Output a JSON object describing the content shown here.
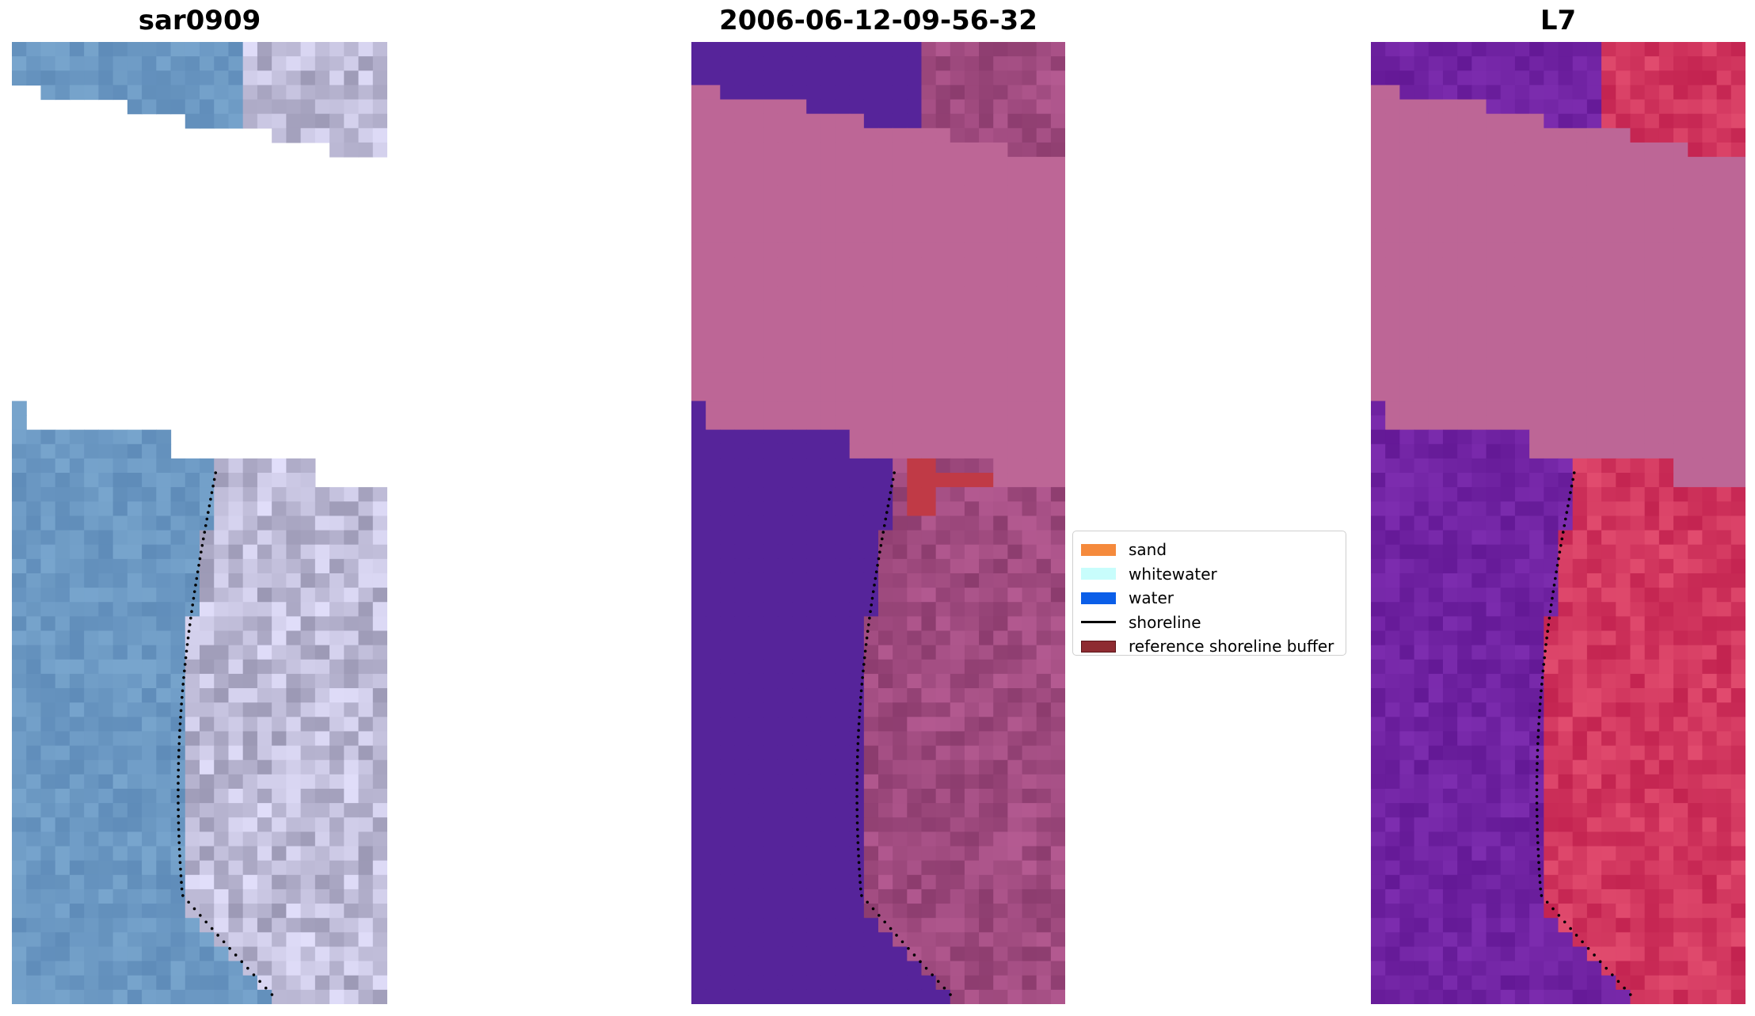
{
  "panels": [
    {
      "title": "sar0909",
      "palette": "rgb"
    },
    {
      "title": "2006-06-12-09-56-32",
      "palette": "classified"
    },
    {
      "title": "L7",
      "palette": "mndwi"
    }
  ],
  "legend": {
    "items": [
      {
        "label": "sand",
        "color": "#f58a3c",
        "kind": "patch"
      },
      {
        "label": "whitewater",
        "color": "#c8fdfc",
        "kind": "patch"
      },
      {
        "label": "water",
        "color": "#0b5ee8",
        "kind": "patch"
      },
      {
        "label": "shoreline",
        "color": "#000000",
        "kind": "line"
      },
      {
        "label": "reference shoreline buffer",
        "color": "#8e2b31",
        "kind": "patch"
      }
    ]
  },
  "colors": {
    "no_data_overlay": "#bd6696",
    "water_class": "#56249a",
    "buffer_overlay": "#c03a46",
    "shoreline_dots": "#000000"
  }
}
